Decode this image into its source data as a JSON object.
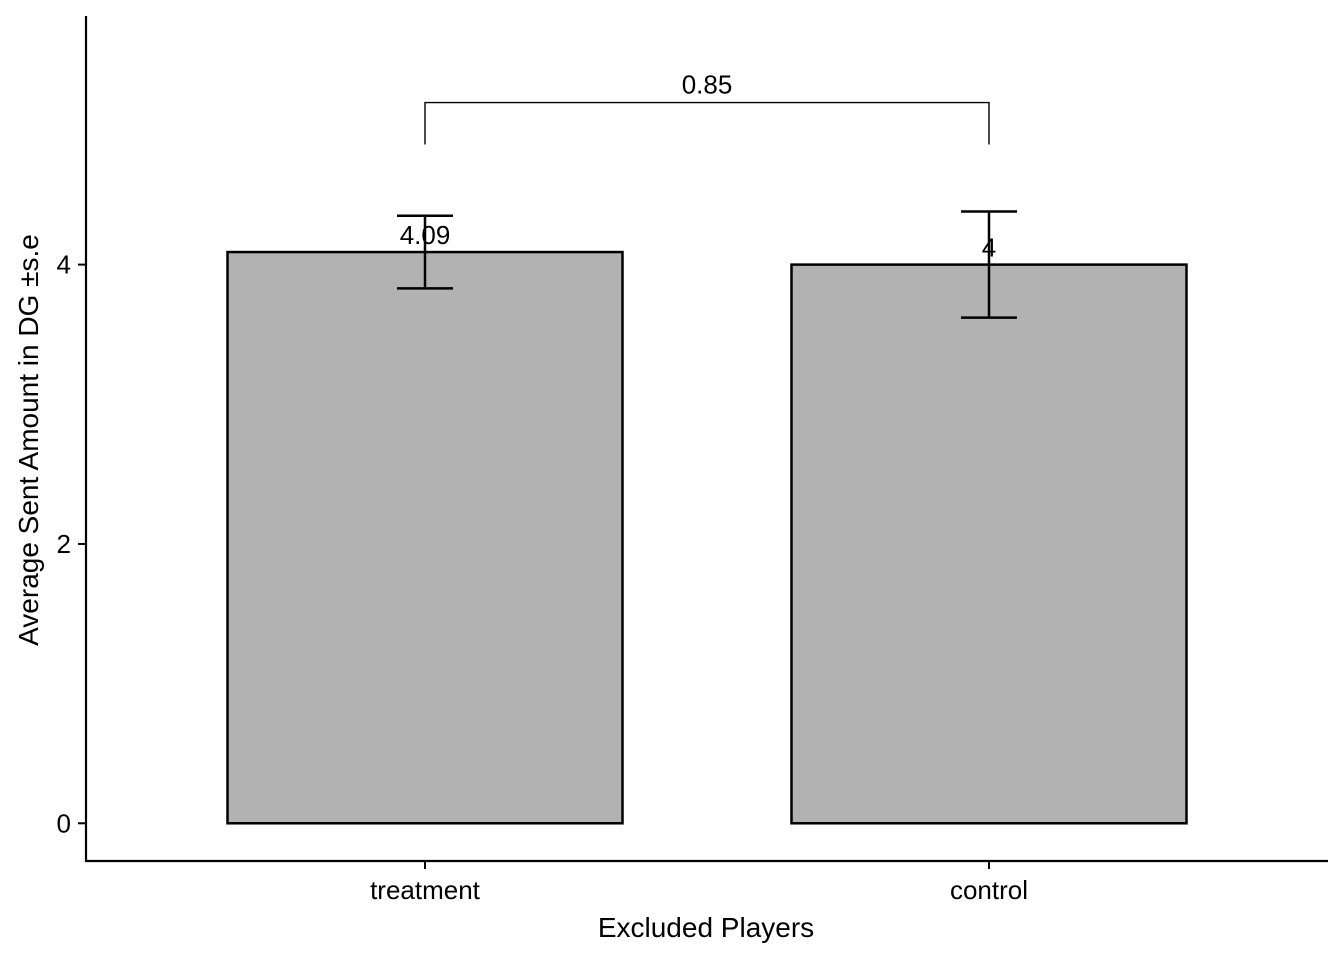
{
  "chart_data": {
    "type": "bar",
    "categories": [
      "treatment",
      "control"
    ],
    "values": [
      4.09,
      4.0
    ],
    "error_bars": [
      {
        "lower": 3.83,
        "upper": 4.35
      },
      {
        "lower": 3.62,
        "upper": 4.38
      }
    ],
    "data_labels": [
      "4.09",
      "4"
    ],
    "xlabel": "Excluded Players",
    "ylabel": "Average Sent Amount in DG ±s.e",
    "yticks": [
      0,
      2,
      4
    ],
    "ytick_labels": [
      "0",
      "2",
      "4"
    ],
    "ylim": [
      -0.27,
      5.78
    ],
    "comparison": {
      "groups": [
        "treatment",
        "control"
      ],
      "label": "0.85",
      "y": 5.16,
      "y_drop": 4.86
    },
    "bar_color": "#b2b2b2",
    "grid": false
  }
}
